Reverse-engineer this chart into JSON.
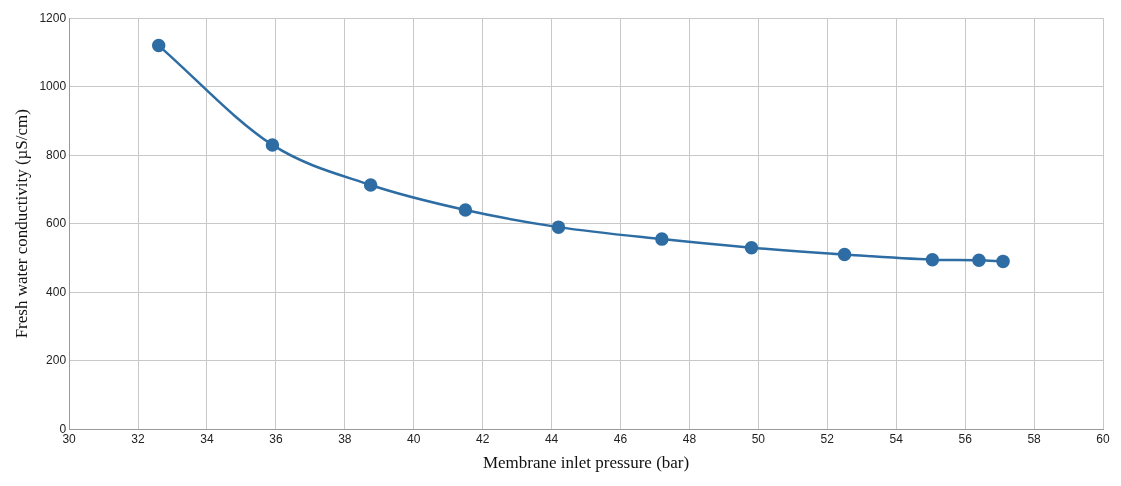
{
  "chart_data": {
    "type": "line",
    "xlabel": "Membrane inlet pressure (bar)",
    "ylabel": "Fresh water conductivity (µS/cm)",
    "x": [
      32.6,
      35.9,
      38.75,
      41.5,
      44.2,
      47.2,
      49.8,
      52.5,
      55.05,
      56.4,
      57.1
    ],
    "series": [
      {
        "color": "#2e6da4",
        "values": [
          1120,
          830,
          713,
          640,
          590,
          555,
          530,
          510,
          495,
          493,
          490
        ]
      }
    ],
    "xlim": [
      30,
      60
    ],
    "xticks": [
      30,
      32,
      34,
      36,
      38,
      40,
      42,
      44,
      46,
      48,
      50,
      52,
      54,
      56,
      58,
      60
    ],
    "ylim": [
      0,
      1200
    ],
    "yticks": [
      0,
      200,
      400,
      600,
      800,
      1000,
      1200
    ],
    "grid": true,
    "marker": "circle",
    "line_style": "solid"
  }
}
